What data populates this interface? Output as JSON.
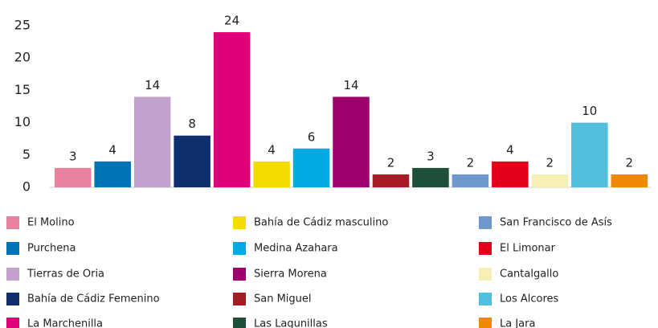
{
  "chart_data": {
    "type": "bar",
    "categories": [
      "El Molino",
      "Purchena",
      "Tierras de Oria",
      "Bahía de Cádiz Femenino",
      "La Marchenilla",
      "Bahía de Cádiz masculino",
      "Medina Azahara",
      "Sierra Morena",
      "San Miguel",
      "Las Lagunillas",
      "San Francisco de Asís",
      "El Limonar",
      "Cantalgallo",
      "Los Alcores",
      "La Jara"
    ],
    "values": [
      3,
      4,
      14,
      8,
      24,
      4,
      6,
      14,
      2,
      3,
      2,
      4,
      2,
      10,
      2
    ],
    "colors": [
      "#e8829e",
      "#0072b8",
      "#c0a2cc",
      "#0e2f6e",
      "#e0007a",
      "#f5dc00",
      "#00abe4",
      "#a0006e",
      "#a51c25",
      "#1d5038",
      "#6d99cc",
      "#e2001a",
      "#f7f0b4",
      "#4fbfdc",
      "#ef8a00"
    ],
    "ylim": [
      0,
      25
    ],
    "yticks": [
      0,
      5,
      10,
      15,
      20,
      25
    ],
    "grid": false,
    "legend": "bottom"
  }
}
